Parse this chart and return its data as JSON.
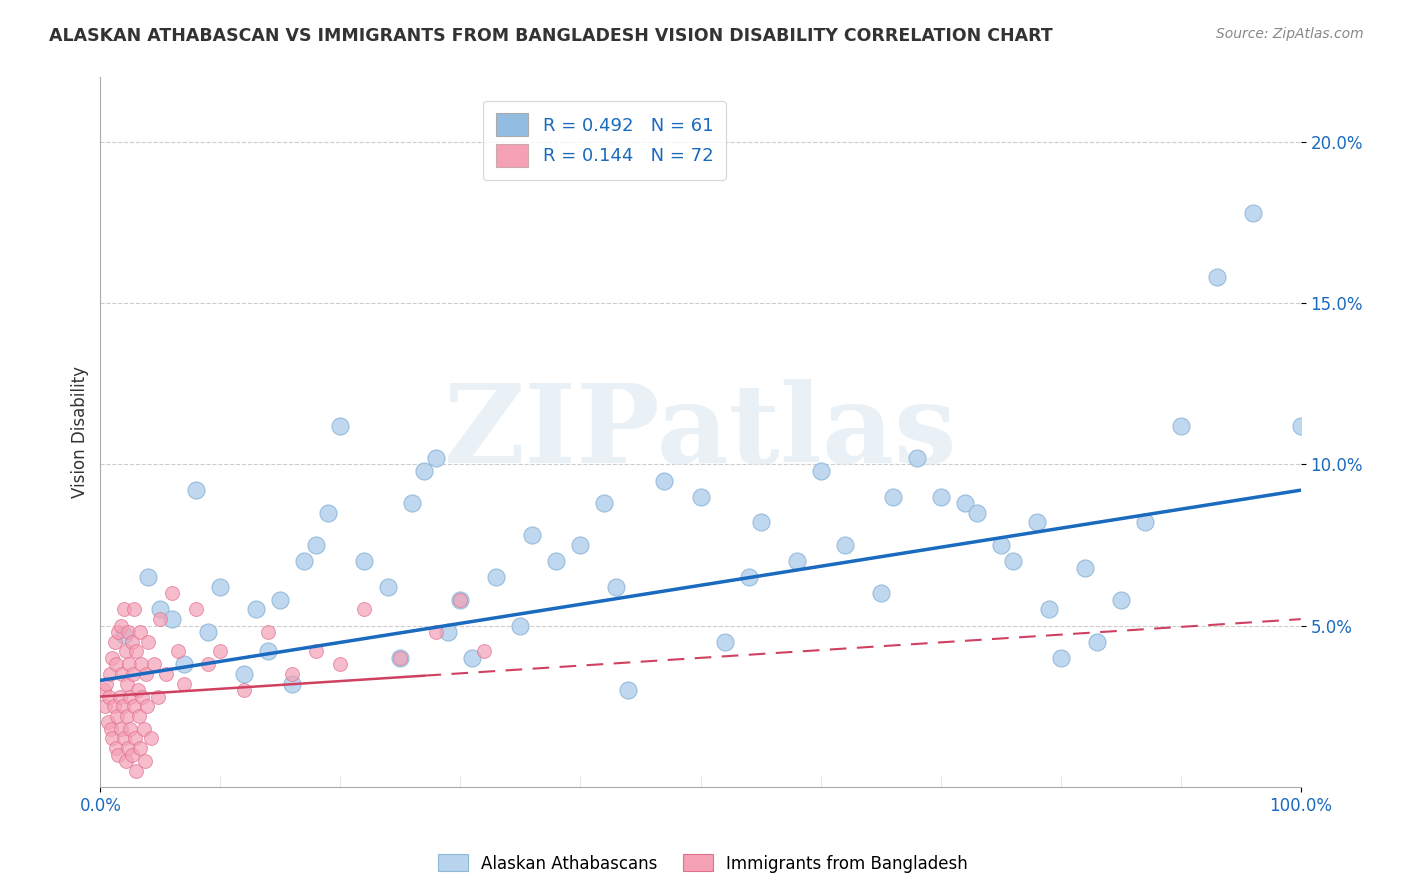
{
  "title": "ALASKAN ATHABASCAN VS IMMIGRANTS FROM BANGLADESH VISION DISABILITY CORRELATION CHART",
  "source": "Source: ZipAtlas.com",
  "ylabel": "Vision Disability",
  "xlim": [
    0,
    1.0
  ],
  "ylim": [
    0,
    0.22
  ],
  "yticks": [
    0.05,
    0.1,
    0.15,
    0.2
  ],
  "ytick_labels": [
    "5.0%",
    "10.0%",
    "15.0%",
    "20.0%"
  ],
  "xtick_labels": [
    "0.0%",
    "100.0%"
  ],
  "legend_label1": "R = 0.492   N = 61",
  "legend_label2": "R = 0.144   N = 72",
  "legend_color1": "#92bde0",
  "legend_color2": "#f4a0b5",
  "scatter_color1": "#b8d4ee",
  "scatter_color2": "#f4a0b5",
  "scatter_edge1": "#90b8d8",
  "scatter_edge2": "#e07090",
  "line_color1": "#1a6abf",
  "line_color2": "#d04060",
  "background_color": "#ffffff",
  "watermark": "ZIPatlas",
  "blue_points": [
    [
      0.02,
      0.047
    ],
    [
      0.04,
      0.065
    ],
    [
      0.05,
      0.055
    ],
    [
      0.06,
      0.052
    ],
    [
      0.07,
      0.038
    ],
    [
      0.08,
      0.092
    ],
    [
      0.09,
      0.048
    ],
    [
      0.1,
      0.062
    ],
    [
      0.12,
      0.035
    ],
    [
      0.13,
      0.055
    ],
    [
      0.14,
      0.042
    ],
    [
      0.15,
      0.058
    ],
    [
      0.16,
      0.032
    ],
    [
      0.17,
      0.07
    ],
    [
      0.18,
      0.075
    ],
    [
      0.19,
      0.085
    ],
    [
      0.2,
      0.112
    ],
    [
      0.22,
      0.07
    ],
    [
      0.24,
      0.062
    ],
    [
      0.25,
      0.04
    ],
    [
      0.26,
      0.088
    ],
    [
      0.27,
      0.098
    ],
    [
      0.28,
      0.102
    ],
    [
      0.29,
      0.048
    ],
    [
      0.3,
      0.058
    ],
    [
      0.31,
      0.04
    ],
    [
      0.33,
      0.065
    ],
    [
      0.35,
      0.05
    ],
    [
      0.36,
      0.078
    ],
    [
      0.38,
      0.07
    ],
    [
      0.4,
      0.075
    ],
    [
      0.42,
      0.088
    ],
    [
      0.43,
      0.062
    ],
    [
      0.44,
      0.03
    ],
    [
      0.47,
      0.095
    ],
    [
      0.5,
      0.09
    ],
    [
      0.52,
      0.045
    ],
    [
      0.54,
      0.065
    ],
    [
      0.55,
      0.082
    ],
    [
      0.58,
      0.07
    ],
    [
      0.6,
      0.098
    ],
    [
      0.62,
      0.075
    ],
    [
      0.65,
      0.06
    ],
    [
      0.66,
      0.09
    ],
    [
      0.68,
      0.102
    ],
    [
      0.7,
      0.09
    ],
    [
      0.72,
      0.088
    ],
    [
      0.73,
      0.085
    ],
    [
      0.75,
      0.075
    ],
    [
      0.76,
      0.07
    ],
    [
      0.78,
      0.082
    ],
    [
      0.79,
      0.055
    ],
    [
      0.8,
      0.04
    ],
    [
      0.82,
      0.068
    ],
    [
      0.83,
      0.045
    ],
    [
      0.85,
      0.058
    ],
    [
      0.87,
      0.082
    ],
    [
      0.9,
      0.112
    ],
    [
      0.93,
      0.158
    ],
    [
      0.96,
      0.178
    ],
    [
      1.0,
      0.112
    ]
  ],
  "pink_points": [
    [
      0.003,
      0.03
    ],
    [
      0.004,
      0.025
    ],
    [
      0.005,
      0.032
    ],
    [
      0.006,
      0.02
    ],
    [
      0.007,
      0.028
    ],
    [
      0.008,
      0.035
    ],
    [
      0.009,
      0.018
    ],
    [
      0.01,
      0.04
    ],
    [
      0.01,
      0.015
    ],
    [
      0.011,
      0.025
    ],
    [
      0.012,
      0.045
    ],
    [
      0.013,
      0.012
    ],
    [
      0.013,
      0.038
    ],
    [
      0.014,
      0.022
    ],
    [
      0.015,
      0.048
    ],
    [
      0.015,
      0.01
    ],
    [
      0.016,
      0.028
    ],
    [
      0.017,
      0.05
    ],
    [
      0.017,
      0.018
    ],
    [
      0.018,
      0.035
    ],
    [
      0.019,
      0.025
    ],
    [
      0.02,
      0.055
    ],
    [
      0.02,
      0.015
    ],
    [
      0.021,
      0.042
    ],
    [
      0.021,
      0.008
    ],
    [
      0.022,
      0.032
    ],
    [
      0.022,
      0.022
    ],
    [
      0.023,
      0.048
    ],
    [
      0.023,
      0.012
    ],
    [
      0.024,
      0.038
    ],
    [
      0.025,
      0.028
    ],
    [
      0.025,
      0.018
    ],
    [
      0.026,
      0.045
    ],
    [
      0.026,
      0.01
    ],
    [
      0.027,
      0.035
    ],
    [
      0.028,
      0.025
    ],
    [
      0.028,
      0.055
    ],
    [
      0.029,
      0.015
    ],
    [
      0.03,
      0.042
    ],
    [
      0.03,
      0.005
    ],
    [
      0.031,
      0.03
    ],
    [
      0.032,
      0.022
    ],
    [
      0.033,
      0.048
    ],
    [
      0.033,
      0.012
    ],
    [
      0.034,
      0.038
    ],
    [
      0.035,
      0.028
    ],
    [
      0.036,
      0.018
    ],
    [
      0.037,
      0.008
    ],
    [
      0.038,
      0.035
    ],
    [
      0.039,
      0.025
    ],
    [
      0.04,
      0.045
    ],
    [
      0.042,
      0.015
    ],
    [
      0.045,
      0.038
    ],
    [
      0.048,
      0.028
    ],
    [
      0.05,
      0.052
    ],
    [
      0.055,
      0.035
    ],
    [
      0.06,
      0.06
    ],
    [
      0.065,
      0.042
    ],
    [
      0.07,
      0.032
    ],
    [
      0.08,
      0.055
    ],
    [
      0.09,
      0.038
    ],
    [
      0.1,
      0.042
    ],
    [
      0.12,
      0.03
    ],
    [
      0.14,
      0.048
    ],
    [
      0.16,
      0.035
    ],
    [
      0.18,
      0.042
    ],
    [
      0.2,
      0.038
    ],
    [
      0.22,
      0.055
    ],
    [
      0.25,
      0.04
    ],
    [
      0.28,
      0.048
    ],
    [
      0.3,
      0.058
    ],
    [
      0.32,
      0.042
    ]
  ],
  "blue_trend_x": [
    0.0,
    1.0
  ],
  "blue_trend_y": [
    0.033,
    0.092
  ],
  "pink_trend_x": [
    0.0,
    1.0
  ],
  "pink_trend_y": [
    0.028,
    0.052
  ]
}
